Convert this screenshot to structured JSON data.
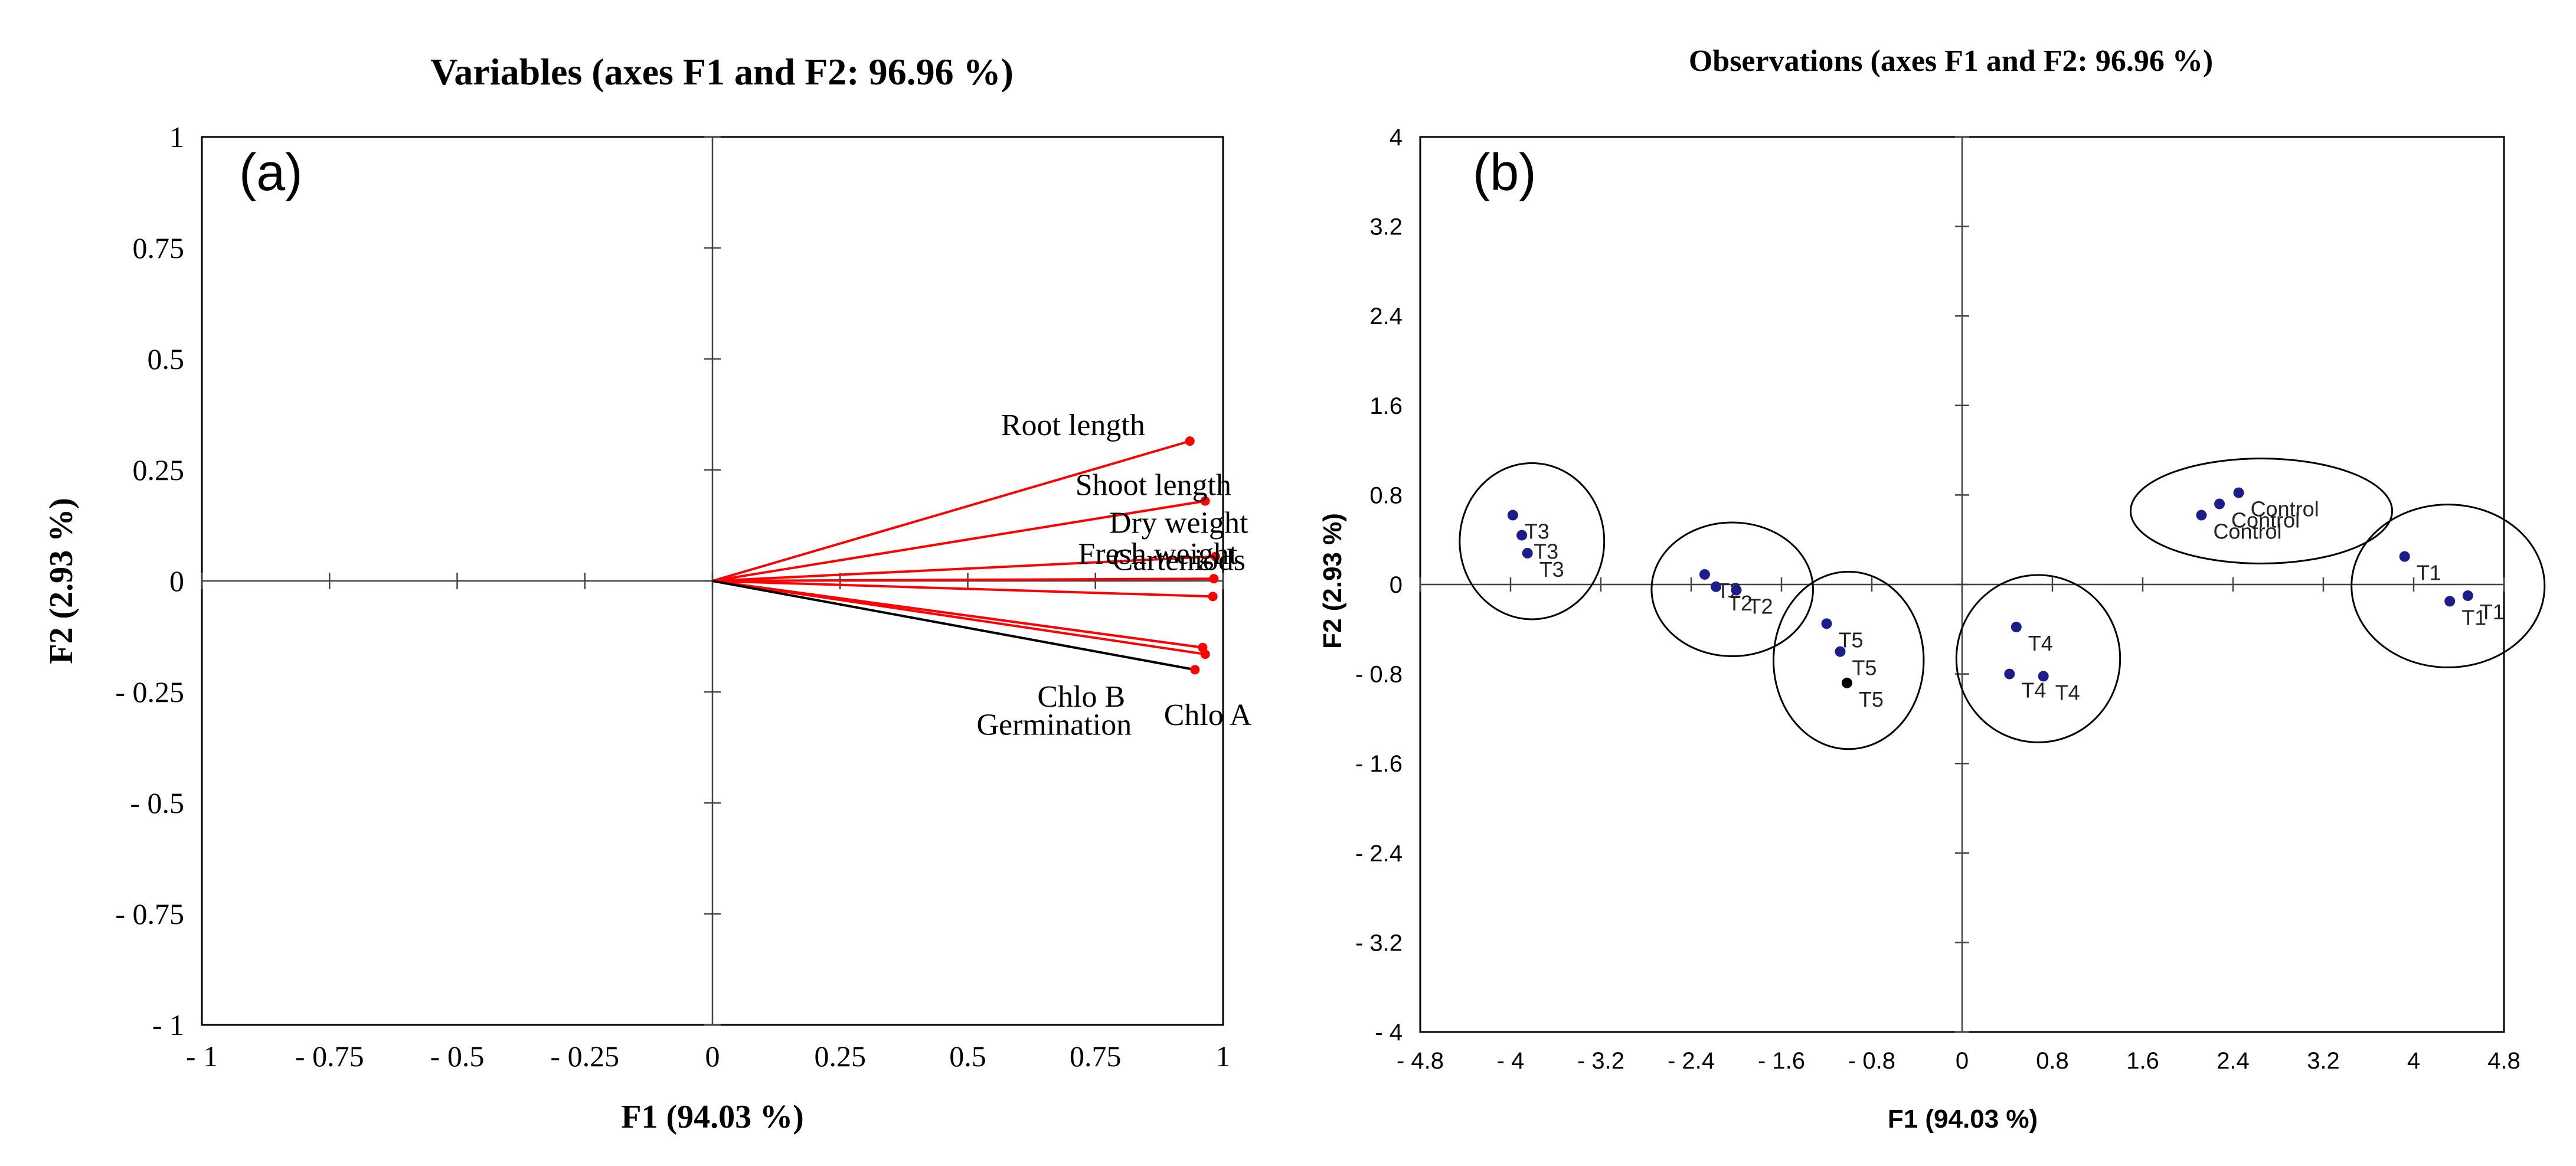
{
  "chart_data": [
    {
      "type": "biplot-variables",
      "panel_label": "(a)",
      "title": "Variables (axes F1 and F2: 96.96 %)",
      "xlabel": "F1 (94.03 %)",
      "ylabel": "F2 (2.93 %)",
      "xlim": [
        -1,
        1
      ],
      "ylim": [
        -1,
        1
      ],
      "x_ticks": [
        -1,
        -0.75,
        -0.5,
        -0.25,
        0,
        0.25,
        0.5,
        0.75,
        1
      ],
      "x_tick_labels": [
        "- 1",
        "- 0.75",
        "- 0.5",
        "- 0.25",
        "0",
        "0.25",
        "0.5",
        "0.75",
        "1"
      ],
      "y_ticks": [
        1,
        0.75,
        0.5,
        0.25,
        0,
        -0.25,
        -0.5,
        -0.75,
        -1
      ],
      "y_tick_labels": [
        "1",
        "0.75",
        "0.5",
        "0.25",
        "0",
        "- 0.25",
        "- 0.5",
        "- 0.75",
        "- 1"
      ],
      "line_color": "#ff0000",
      "vectors": [
        {
          "name": "Root length",
          "x": 0.935,
          "y": 0.315,
          "color": "#ff0000"
        },
        {
          "name": "Shoot length",
          "x": 0.965,
          "y": 0.18,
          "color": "#ff0000"
        },
        {
          "name": "Dry weight",
          "x": 0.985,
          "y": 0.055,
          "color": "#ff0000"
        },
        {
          "name": "Fresh weight",
          "x": 0.982,
          "y": 0.005,
          "color": "#ff0000"
        },
        {
          "name": "Carteniods",
          "x": 0.98,
          "y": -0.035,
          "color": "#ff0000"
        },
        {
          "name": "Chlo B",
          "x": 0.96,
          "y": -0.15,
          "color": "#ff0000"
        },
        {
          "name": "Chlo A",
          "x": 0.965,
          "y": -0.165,
          "color": "#ff0000"
        },
        {
          "name": "Germination",
          "x": 0.945,
          "y": -0.2,
          "color": "#000000"
        }
      ]
    },
    {
      "type": "scatter",
      "panel_label": "(b)",
      "title": "Observations (axes F1 and F2: 96.96 %)",
      "xlabel": "F1 (94.03 %)",
      "ylabel": "F2 (2.93 %)",
      "xlim": [
        -4.8,
        4.8
      ],
      "ylim": [
        -4,
        4
      ],
      "x_ticks": [
        -4.8,
        -4,
        -3.2,
        -2.4,
        -1.6,
        -0.8,
        0,
        0.8,
        1.6,
        2.4,
        3.2,
        4,
        4.8
      ],
      "x_tick_labels": [
        "- 4.8",
        "- 4",
        "- 3.2",
        "- 2.4",
        "- 1.6",
        "- 0.8",
        "0",
        "0.8",
        "1.6",
        "2.4",
        "3.2",
        "4",
        "4.8"
      ],
      "y_ticks": [
        4,
        3.2,
        2.4,
        1.6,
        0.8,
        0,
        -0.8,
        -1.6,
        -2.4,
        -3.2,
        -4
      ],
      "y_tick_labels": [
        "4",
        "3.2",
        "2.4",
        "1.6",
        "0.8",
        "0",
        "- 0.8",
        "- 1.6",
        "- 2.4",
        "- 3.2",
        "- 4"
      ],
      "point_color": "#1c1c8a",
      "points": [
        {
          "label": "T3",
          "x": -3.98,
          "y": 0.62
        },
        {
          "label": "T3",
          "x": -3.9,
          "y": 0.44
        },
        {
          "label": "T3",
          "x": -3.85,
          "y": 0.28
        },
        {
          "label": "T2",
          "x": -2.28,
          "y": 0.09
        },
        {
          "label": "T2",
          "x": -2.18,
          "y": -0.02
        },
        {
          "label": "T2",
          "x": -2.0,
          "y": -0.05
        },
        {
          "label": "T5",
          "x": -1.2,
          "y": -0.35
        },
        {
          "label": "T5",
          "x": -1.08,
          "y": -0.6
        },
        {
          "label": "T5",
          "x": -1.02,
          "y": -0.88
        },
        {
          "label": "T4",
          "x": 0.48,
          "y": -0.38
        },
        {
          "label": "T4",
          "x": 0.42,
          "y": -0.8
        },
        {
          "label": "T4",
          "x": 0.72,
          "y": -0.82
        },
        {
          "label": "Control",
          "x": 2.12,
          "y": 0.62
        },
        {
          "label": "Control",
          "x": 2.28,
          "y": 0.72
        },
        {
          "label": "Control",
          "x": 2.45,
          "y": 0.82
        },
        {
          "label": "T1",
          "x": 3.92,
          "y": 0.25
        },
        {
          "label": "T1",
          "x": 4.32,
          "y": -0.15
        },
        {
          "label": "T1",
          "x": 4.48,
          "y": -0.1
        }
      ],
      "groups": [
        "T3",
        "T2",
        "T5",
        "T4",
        "Control",
        "T1"
      ]
    }
  ]
}
